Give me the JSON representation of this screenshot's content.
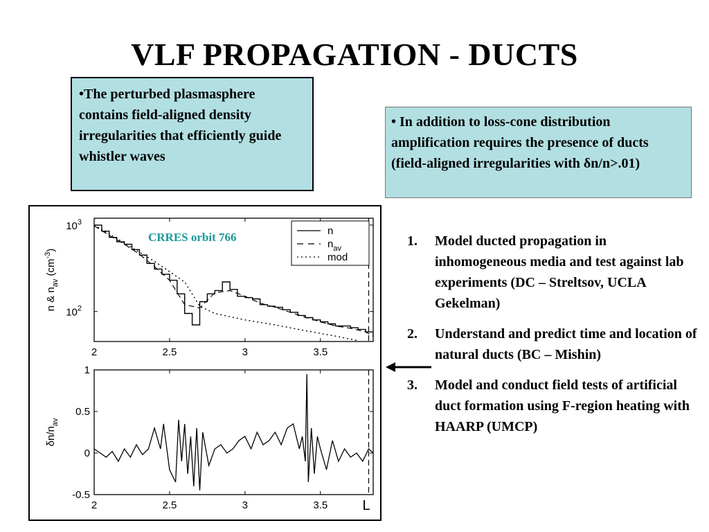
{
  "slide": {
    "title": "VLF PROPAGATION - DUCTS"
  },
  "box_left": {
    "text": "•The perturbed plasmasphere contains field-aligned density irregularities that efficiently guide whistler waves"
  },
  "box_right": {
    "text": "• In addition to loss-cone distribution amplification requires the presence of ducts (field-aligned irregularities with δn/n>.01)"
  },
  "steps": [
    {
      "num": "1.",
      "text": " Model ducted propagation in inhomogeneous media and test against lab experiments (DC – Streltsov, UCLA Gekelman)"
    },
    {
      "num": "2.",
      "text": "Understand and predict time and location of natural ducts  (BC – Mishin)"
    },
    {
      "num": "3.",
      "text": "Model and conduct field tests of artificial duct formation using F-region heating with HAARP (UMCP)"
    }
  ],
  "icons": {
    "pointer": "arrow-left-icon"
  },
  "colors": {
    "box_fill": "#b2dfe2",
    "annotation": "#1a9a9a"
  },
  "chart_data": [
    {
      "type": "line",
      "annotation": "CRRES orbit 766",
      "ylabel_text": "n & n",
      "ylabel_sub": "av",
      "ylabel_unit": " (cm",
      "ylabel_unit_sup": "-3",
      "ylabel_close": ")",
      "xlim": [
        2,
        3.85
      ],
      "ylim": [
        45,
        1200
      ],
      "log_y": true,
      "x_ticks": [
        "2",
        "2.5",
        "3",
        "3.5"
      ],
      "y_ticks": [
        {
          "base": "10",
          "exp": "3",
          "value": 1000
        },
        {
          "base": "10",
          "exp": "2",
          "value": 100
        }
      ],
      "legend": [
        {
          "label": "n",
          "sub": "",
          "style": "solid"
        },
        {
          "label": "n",
          "sub": "av",
          "style": "dashed"
        },
        {
          "label": "mod",
          "sub": "",
          "style": "dotted"
        }
      ],
      "legend_position": "top-right",
      "vertical_marker_x": 3.82,
      "series": [
        {
          "name": "n",
          "x": [
            2.0,
            2.05,
            2.1,
            2.15,
            2.2,
            2.25,
            2.3,
            2.35,
            2.4,
            2.45,
            2.5,
            2.55,
            2.6,
            2.65,
            2.7,
            2.75,
            2.8,
            2.85,
            2.9,
            2.95,
            3.0,
            3.05,
            3.1,
            3.15,
            3.2,
            3.25,
            3.3,
            3.35,
            3.4,
            3.45,
            3.5,
            3.55,
            3.6,
            3.65,
            3.7,
            3.75,
            3.8,
            3.85
          ],
          "y": [
            1000,
            850,
            720,
            640,
            600,
            520,
            450,
            360,
            310,
            270,
            230,
            160,
            95,
            70,
            130,
            160,
            175,
            220,
            180,
            150,
            145,
            140,
            120,
            115,
            112,
            105,
            98,
            90,
            85,
            80,
            76,
            72,
            68,
            68,
            65,
            62,
            58,
            50
          ]
        },
        {
          "name": "n_av",
          "x": [
            2.0,
            2.1,
            2.2,
            2.3,
            2.4,
            2.5,
            2.6,
            2.7,
            2.8,
            2.9,
            3.0,
            3.1,
            3.2,
            3.3,
            3.4,
            3.5,
            3.6,
            3.7,
            3.8,
            3.85
          ],
          "y": [
            980,
            760,
            600,
            460,
            330,
            230,
            120,
            110,
            165,
            175,
            150,
            125,
            112,
            98,
            86,
            76,
            68,
            64,
            58,
            52
          ]
        },
        {
          "name": "mod",
          "x": [
            2.0,
            2.2,
            2.4,
            2.6,
            2.7,
            2.8,
            3.0,
            3.2,
            3.4,
            3.6,
            3.75
          ],
          "y": [
            1000,
            620,
            380,
            220,
            115,
            95,
            80,
            70,
            60,
            52,
            46
          ]
        }
      ]
    },
    {
      "type": "line",
      "ylabel_text": "δn/n",
      "ylabel_sub": "av",
      "xlabel": "L",
      "xlim": [
        2,
        3.85
      ],
      "ylim": [
        -0.5,
        1
      ],
      "x_ticks": [
        "2",
        "2.5",
        "3",
        "3.5"
      ],
      "y_ticks": [
        {
          "label": "1",
          "value": 1
        },
        {
          "label": "0.5",
          "value": 0.5
        },
        {
          "label": "0",
          "value": 0
        },
        {
          "label": "-0.5",
          "value": -0.5
        }
      ],
      "vertical_marker_x": 3.82,
      "series": [
        {
          "name": "δn/n_av",
          "x": [
            2.0,
            2.04,
            2.08,
            2.12,
            2.16,
            2.2,
            2.24,
            2.28,
            2.32,
            2.36,
            2.4,
            2.44,
            2.46,
            2.5,
            2.54,
            2.56,
            2.58,
            2.6,
            2.62,
            2.64,
            2.66,
            2.68,
            2.7,
            2.72,
            2.74,
            2.76,
            2.8,
            2.84,
            2.88,
            2.92,
            2.96,
            3.0,
            3.04,
            3.08,
            3.12,
            3.16,
            3.2,
            3.24,
            3.28,
            3.32,
            3.36,
            3.38,
            3.4,
            3.41,
            3.42,
            3.44,
            3.46,
            3.48,
            3.5,
            3.54,
            3.58,
            3.62,
            3.66,
            3.7,
            3.74,
            3.78,
            3.82,
            3.85
          ],
          "y": [
            0.05,
            0.0,
            -0.05,
            0.02,
            -0.1,
            0.05,
            -0.05,
            0.1,
            -0.02,
            0.05,
            0.3,
            0.05,
            0.35,
            -0.2,
            -0.35,
            0.4,
            -0.1,
            0.35,
            -0.25,
            0.2,
            -0.4,
            0.3,
            -0.45,
            0.25,
            0.05,
            -0.15,
            0.05,
            0.1,
            0.0,
            0.05,
            0.15,
            0.2,
            0.05,
            0.25,
            0.1,
            0.15,
            0.25,
            0.1,
            0.3,
            0.35,
            0.05,
            0.2,
            -0.1,
            0.95,
            -0.35,
            0.3,
            -0.25,
            0.2,
            0.05,
            -0.2,
            0.15,
            -0.1,
            0.05,
            -0.05,
            0.0,
            -0.1,
            0.05,
            0.0
          ]
        }
      ]
    }
  ]
}
